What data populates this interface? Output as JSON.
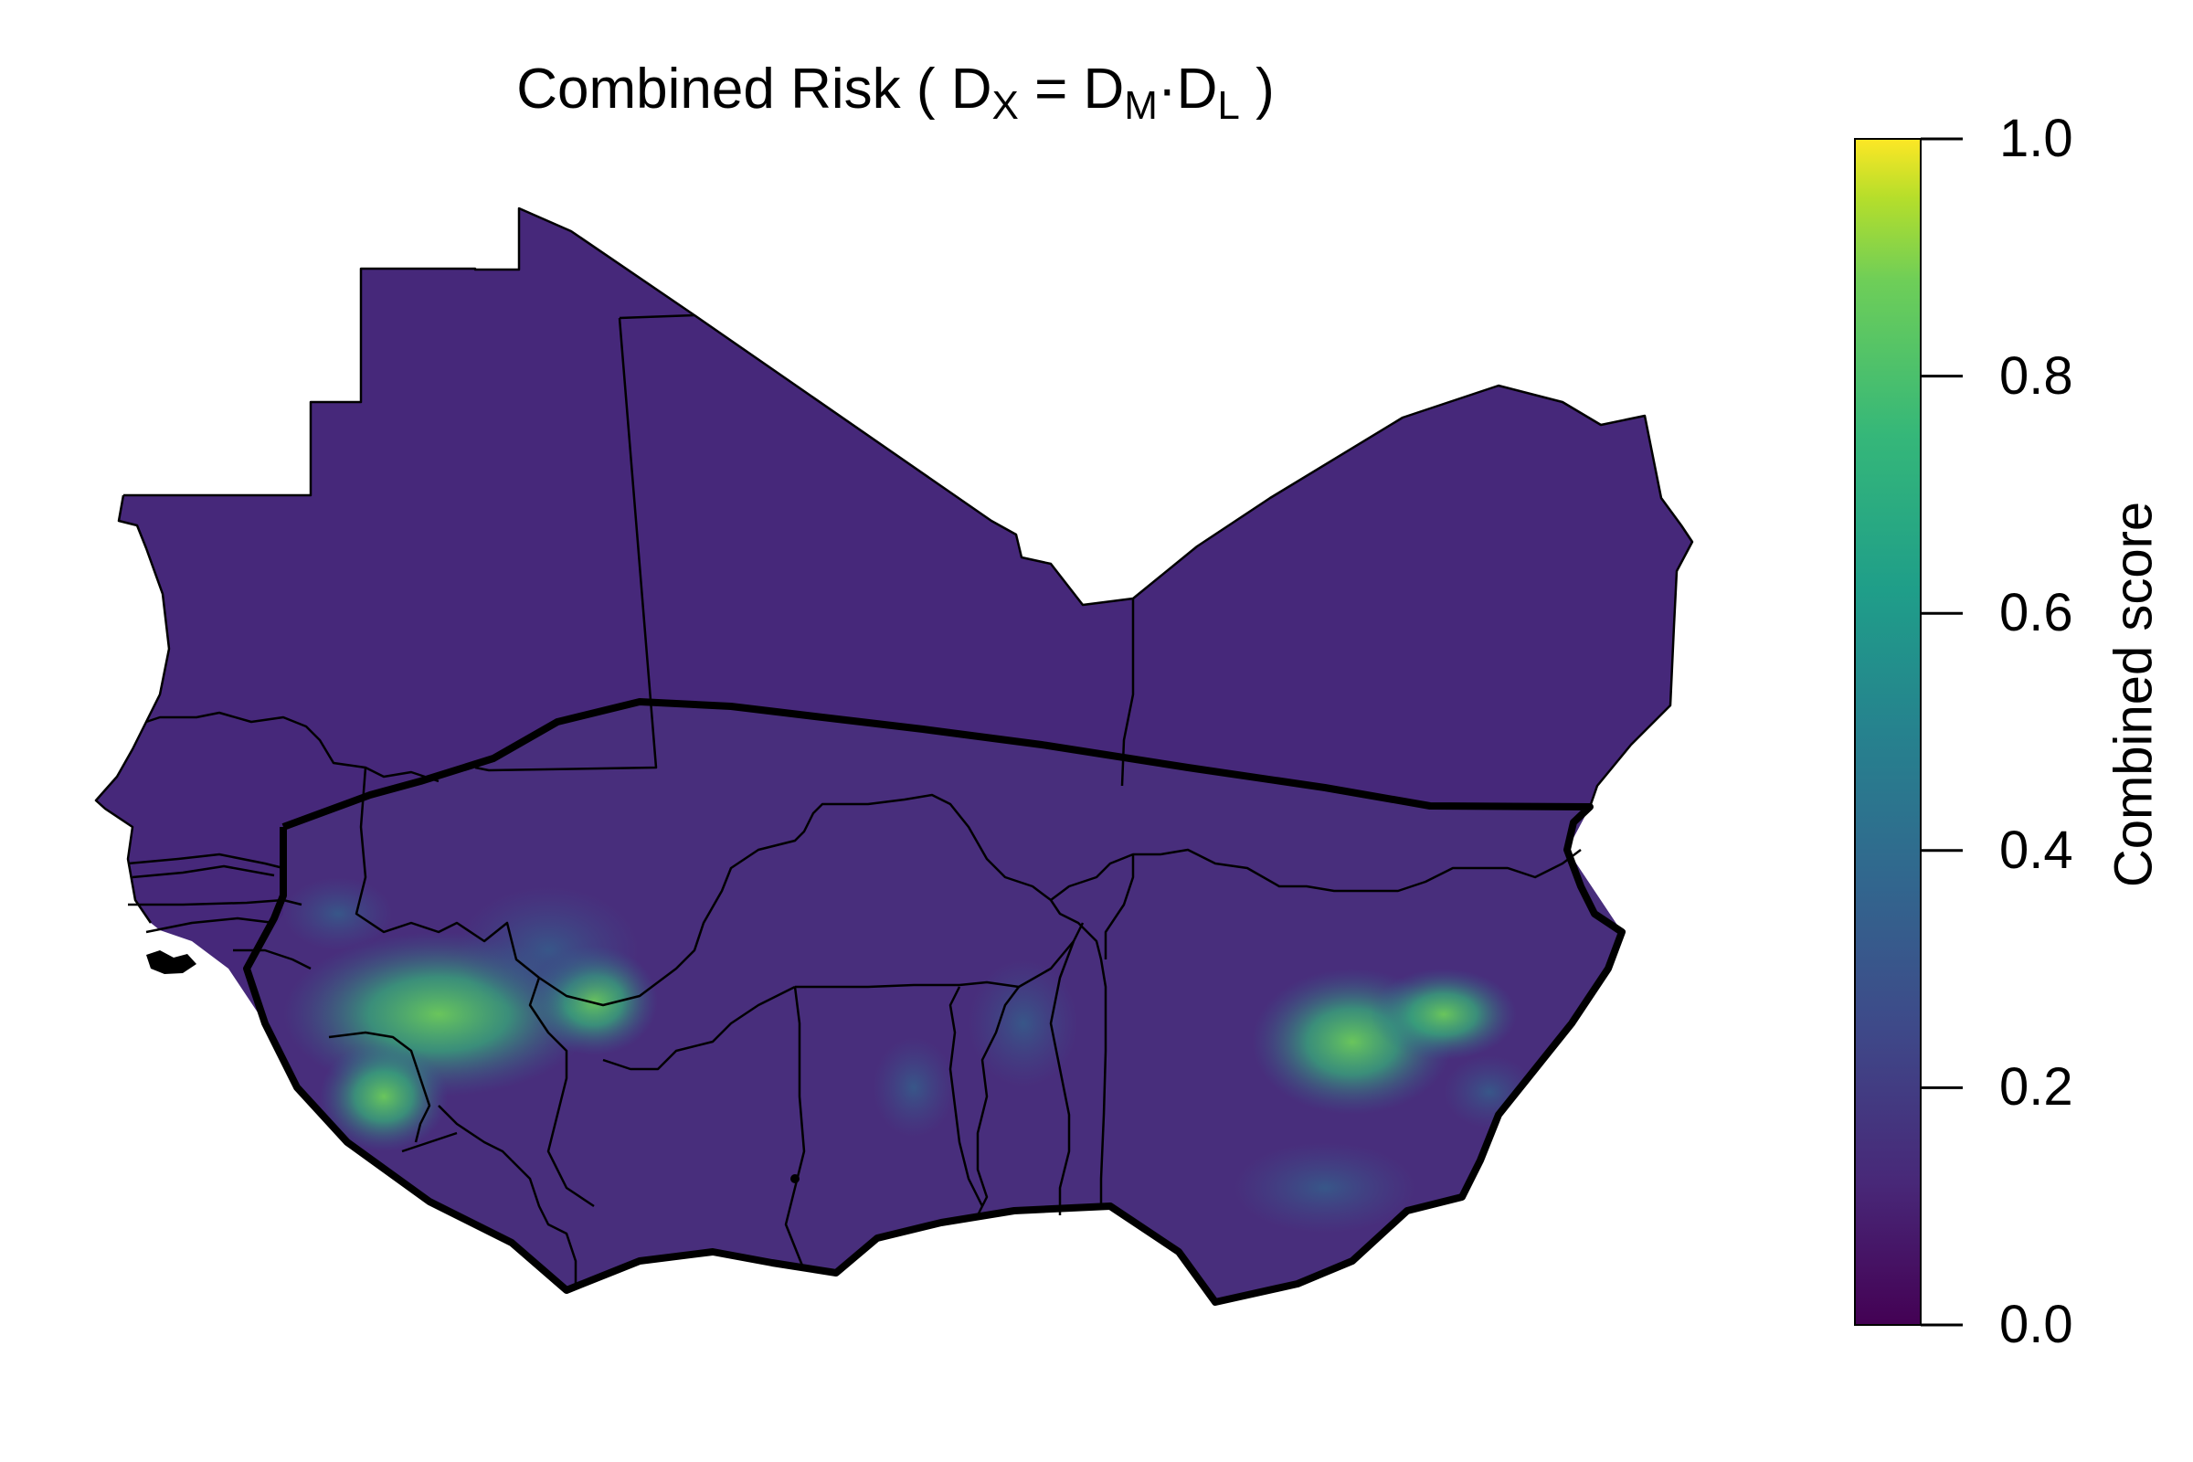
{
  "map": {
    "title": {
      "prefix": "Combined Risk ( D",
      "sub_x": "X",
      "eq": " = D",
      "sub_m": "M",
      "dot": "·D",
      "sub_l": "L",
      "suffix": " )"
    },
    "legend": {
      "title": "Combined score",
      "ticks": [
        "0.0",
        "0.2",
        "0.4",
        "0.6",
        "0.8",
        "1.0"
      ],
      "range": [
        0,
        1
      ],
      "colormap": "viridis",
      "colors": [
        "#440154",
        "#3b528b",
        "#21918c",
        "#5ec962",
        "#fde725"
      ]
    },
    "colors": {
      "background_fill": "#46287a",
      "low_fill": "#472d7b",
      "mid_fill": "#3e5088",
      "high_fill": "#5ec962",
      "border": "#000000"
    },
    "hotspots_score": [
      0.55,
      0.5,
      0.75,
      0.45,
      0.6,
      0.75,
      0.7,
      0.5,
      0.4,
      0.35
    ]
  }
}
